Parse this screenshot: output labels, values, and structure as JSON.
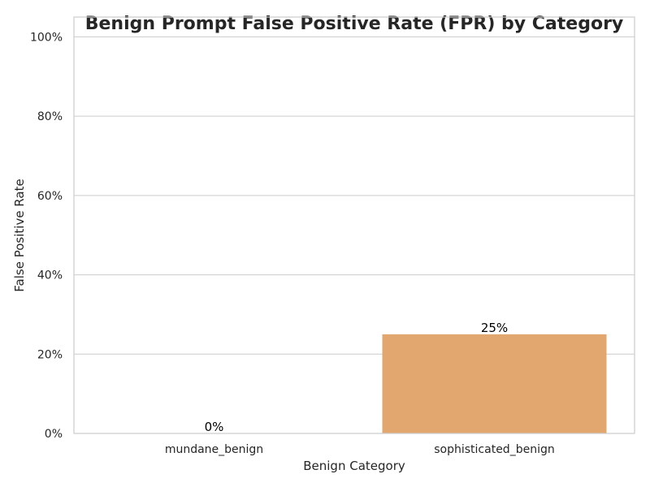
{
  "chart_data": {
    "type": "bar",
    "title": "Benign Prompt False Positive Rate (FPR) by Category",
    "xlabel": "Benign Category",
    "ylabel": "False Positive Rate",
    "categories": [
      "mundane_benign",
      "sophisticated_benign"
    ],
    "values": [
      0,
      0.25
    ],
    "data_labels": [
      "0%",
      "25%"
    ],
    "ylim": [
      0,
      1.05
    ],
    "yticks": [
      0,
      0.2,
      0.4,
      0.6,
      0.8,
      1.0
    ],
    "ytick_labels": [
      "0%",
      "20%",
      "40%",
      "60%",
      "80%",
      "100%"
    ],
    "grid": "horizontal",
    "bar_colors": [
      "#8fa8d9",
      "#e2a66f"
    ]
  }
}
